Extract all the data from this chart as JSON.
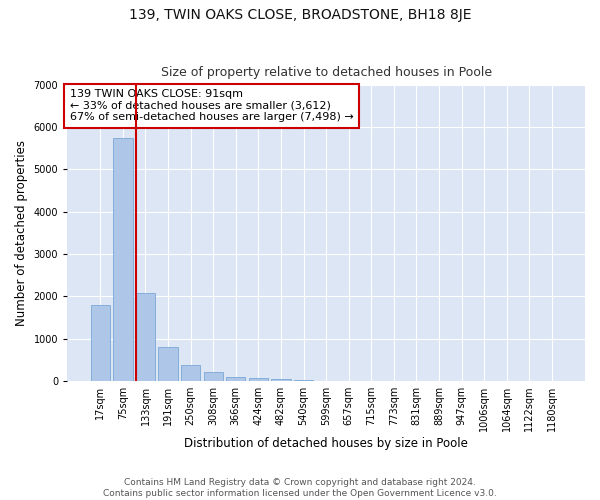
{
  "title": "139, TWIN OAKS CLOSE, BROADSTONE, BH18 8JE",
  "subtitle": "Size of property relative to detached houses in Poole",
  "xlabel": "Distribution of detached houses by size in Poole",
  "ylabel": "Number of detached properties",
  "categories": [
    "17sqm",
    "75sqm",
    "133sqm",
    "191sqm",
    "250sqm",
    "308sqm",
    "366sqm",
    "424sqm",
    "482sqm",
    "540sqm",
    "599sqm",
    "657sqm",
    "715sqm",
    "773sqm",
    "831sqm",
    "889sqm",
    "947sqm",
    "1006sqm",
    "1064sqm",
    "1122sqm",
    "1180sqm"
  ],
  "values": [
    1800,
    5750,
    2075,
    800,
    375,
    225,
    100,
    75,
    50,
    30,
    10,
    5,
    3,
    2,
    1,
    1,
    0,
    0,
    0,
    0,
    0
  ],
  "bar_color": "#aec6e8",
  "bar_edge_color": "#6a9fd0",
  "vline_color": "#cc0000",
  "vline_index": 1.575,
  "annotation_text": "139 TWIN OAKS CLOSE: 91sqm\n← 33% of detached houses are smaller (3,612)\n67% of semi-detached houses are larger (7,498) →",
  "annotation_box_facecolor": "#ffffff",
  "annotation_box_edgecolor": "#cc0000",
  "ylim": [
    0,
    7000
  ],
  "yticks": [
    0,
    1000,
    2000,
    3000,
    4000,
    5000,
    6000,
    7000
  ],
  "background_color": "#dce6f5",
  "plot_bg_color": "#dce6f5",
  "fig_bg_color": "#ffffff",
  "grid_color": "#ffffff",
  "footer_line1": "Contains HM Land Registry data © Crown copyright and database right 2024.",
  "footer_line2": "Contains public sector information licensed under the Open Government Licence v3.0.",
  "title_fontsize": 10,
  "subtitle_fontsize": 9,
  "axis_label_fontsize": 8.5,
  "tick_fontsize": 7,
  "annotation_fontsize": 8,
  "footer_fontsize": 6.5,
  "ylabel_fontsize": 8.5
}
